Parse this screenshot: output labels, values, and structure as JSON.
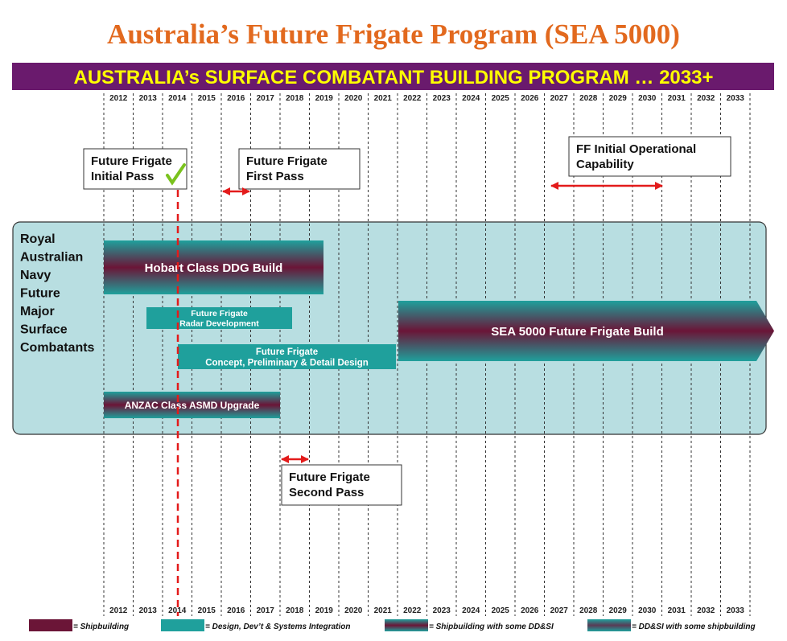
{
  "title": "Australia’s Future Frigate Program (SEA 5000)",
  "banner": "AUSTRALIA’s SURFACE COMBATANT BUILDING PROGRAM … 2033+",
  "years": [
    2012,
    2013,
    2014,
    2015,
    2016,
    2017,
    2018,
    2019,
    2020,
    2021,
    2022,
    2023,
    2024,
    2025,
    2026,
    2027,
    2028,
    2029,
    2030,
    2031,
    2032,
    2033
  ],
  "row_label": [
    "Royal",
    "Australian",
    "Navy",
    "Future",
    "Major",
    "Surface",
    "Combatants"
  ],
  "bars": [
    {
      "lines": [
        "Hobart Class DDG Build"
      ]
    },
    {
      "lines": [
        "Future Frigate",
        "Radar Development"
      ]
    },
    {
      "lines": [
        "Future Frigate",
        "Concept, Preliminary & Detail Design"
      ]
    },
    {
      "lines": [
        "SEA 5000 Future Frigate Build"
      ]
    },
    {
      "lines": [
        "ANZAC Class ASMD Upgrade"
      ]
    }
  ],
  "milestones": [
    {
      "lines": [
        "Future Frigate",
        "Initial Pass"
      ]
    },
    {
      "lines": [
        "Future Frigate",
        "First Pass"
      ]
    },
    {
      "lines": [
        "FF Initial Operational",
        "Capability"
      ]
    },
    {
      "lines": [
        "Future Frigate",
        "Second Pass"
      ]
    }
  ],
  "legend": [
    "= Shipbuilding",
    "= Design, Dev’t & Systems Integration",
    "= Shipbuilding with some DD&SI",
    "= DD&SI with some shipbuilding"
  ]
}
